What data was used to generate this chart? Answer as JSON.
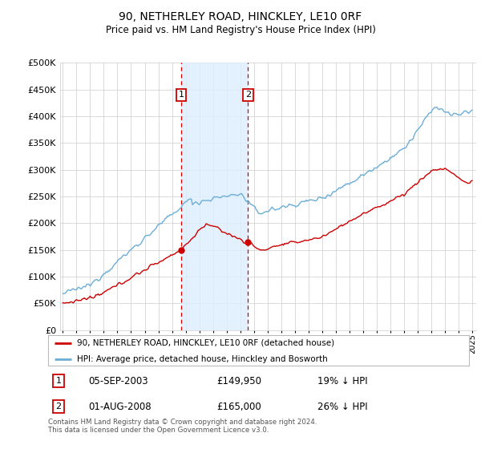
{
  "title": "90, NETHERLEY ROAD, HINCKLEY, LE10 0RF",
  "subtitle": "Price paid vs. HM Land Registry's House Price Index (HPI)",
  "legend_line1": "90, NETHERLEY ROAD, HINCKLEY, LE10 0RF (detached house)",
  "legend_line2": "HPI: Average price, detached house, Hinckley and Bosworth",
  "sale1_date": "05-SEP-2003",
  "sale1_price": "£149,950",
  "sale1_hpi": "19% ↓ HPI",
  "sale2_date": "01-AUG-2008",
  "sale2_price": "£165,000",
  "sale2_hpi": "26% ↓ HPI",
  "footer": "Contains HM Land Registry data © Crown copyright and database right 2024.\nThis data is licensed under the Open Government Licence v3.0.",
  "hpi_color": "#6baed6",
  "price_color": "#cc0000",
  "vline_color": "#dd0000",
  "shade_color": "#ddeeff",
  "background_color": "#ffffff",
  "grid_color": "#cccccc",
  "ylim": [
    0,
    500000
  ],
  "yticks": [
    0,
    50000,
    100000,
    150000,
    200000,
    250000,
    300000,
    350000,
    400000,
    450000,
    500000
  ],
  "sale1_x": 2003.67,
  "sale2_x": 2008.58,
  "xmin": 1994.8,
  "xmax": 2025.3
}
